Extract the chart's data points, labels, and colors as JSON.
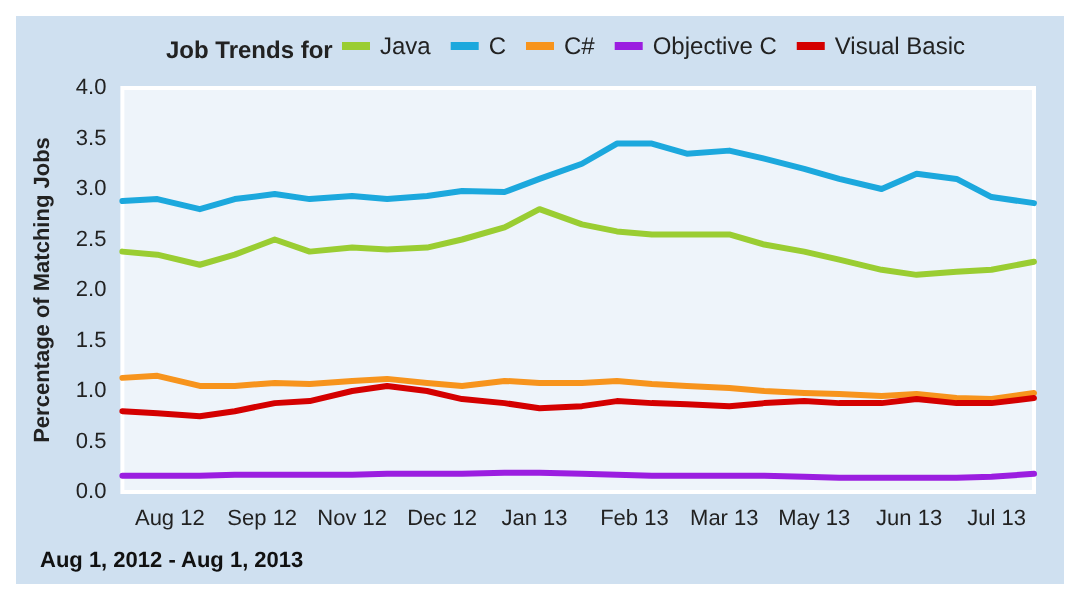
{
  "chart_data": {
    "type": "line",
    "title": "Job Trends for",
    "ylabel": "Percentage of Matching Jobs",
    "annotations": [
      "Aug 1, 2012 - Aug 1, 2013"
    ],
    "x": [
      "2012-08-01",
      "2012-08-15",
      "2012-09-01",
      "2012-09-15",
      "2012-10-01",
      "2012-10-15",
      "2012-11-01",
      "2012-11-15",
      "2012-12-01",
      "2012-12-15",
      "2013-01-01",
      "2013-01-15",
      "2013-02-01",
      "2013-02-15",
      "2013-03-01",
      "2013-03-15",
      "2013-04-01",
      "2013-04-15",
      "2013-05-01",
      "2013-05-15",
      "2013-06-01",
      "2013-06-15",
      "2013-07-01",
      "2013-07-15",
      "2013-08-01"
    ],
    "series": [
      {
        "name": "Java",
        "color": "#9acd32",
        "values": [
          2.38,
          2.35,
          2.25,
          2.35,
          2.5,
          2.38,
          2.42,
          2.4,
          2.42,
          2.5,
          2.62,
          2.8,
          2.65,
          2.58,
          2.55,
          2.55,
          2.55,
          2.45,
          2.38,
          2.3,
          2.2,
          2.15,
          2.18,
          2.2,
          2.28
        ]
      },
      {
        "name": "C",
        "color": "#1ca8dd",
        "values": [
          2.88,
          2.9,
          2.8,
          2.9,
          2.95,
          2.9,
          2.93,
          2.9,
          2.93,
          2.98,
          2.97,
          3.1,
          3.25,
          3.45,
          3.45,
          3.35,
          3.38,
          3.3,
          3.2,
          3.1,
          3.0,
          3.15,
          3.1,
          2.92,
          2.86
        ]
      },
      {
        "name": "C#",
        "color": "#f7941d",
        "values": [
          1.13,
          1.15,
          1.05,
          1.05,
          1.08,
          1.07,
          1.1,
          1.12,
          1.08,
          1.05,
          1.1,
          1.08,
          1.08,
          1.1,
          1.07,
          1.05,
          1.03,
          1.0,
          0.98,
          0.97,
          0.95,
          0.97,
          0.93,
          0.92,
          0.98
        ]
      },
      {
        "name": "Objective C",
        "color": "#9b1ee0",
        "values": [
          0.16,
          0.16,
          0.16,
          0.17,
          0.17,
          0.17,
          0.17,
          0.18,
          0.18,
          0.18,
          0.19,
          0.19,
          0.18,
          0.17,
          0.16,
          0.16,
          0.16,
          0.16,
          0.15,
          0.14,
          0.14,
          0.14,
          0.14,
          0.15,
          0.18
        ]
      },
      {
        "name": "Visual Basic",
        "color": "#d40000",
        "values": [
          0.8,
          0.78,
          0.75,
          0.8,
          0.88,
          0.9,
          1.0,
          1.05,
          1.0,
          0.92,
          0.88,
          0.83,
          0.85,
          0.9,
          0.88,
          0.87,
          0.85,
          0.88,
          0.9,
          0.88,
          0.88,
          0.92,
          0.88,
          0.88,
          0.93
        ]
      }
    ],
    "xlim": [
      "2012-08-01",
      "2013-08-01"
    ],
    "xticks": [
      {
        "value": "2012-08-20",
        "label": "Aug 12"
      },
      {
        "value": "2012-09-26",
        "label": "Sep 12"
      },
      {
        "value": "2012-11-01",
        "label": "Nov 12"
      },
      {
        "value": "2012-12-07",
        "label": "Dec 12"
      },
      {
        "value": "2013-01-13",
        "label": "Jan 13"
      },
      {
        "value": "2013-02-22",
        "label": "Feb 13"
      },
      {
        "value": "2013-03-30",
        "label": "Mar 13"
      },
      {
        "value": "2013-05-05",
        "label": "May 13"
      },
      {
        "value": "2013-06-12",
        "label": "Jun 13"
      },
      {
        "value": "2013-07-17",
        "label": "Jul 13"
      }
    ],
    "ylim": [
      0,
      4
    ],
    "yticks": [
      {
        "value": 0,
        "label": "0.0"
      },
      {
        "value": 0.5,
        "label": "0.5"
      },
      {
        "value": 1,
        "label": "1.0"
      },
      {
        "value": 1.5,
        "label": "1.5"
      },
      {
        "value": 2,
        "label": "2.0"
      },
      {
        "value": 2.5,
        "label": "2.5"
      },
      {
        "value": 3,
        "label": "3.0"
      },
      {
        "value": 3.5,
        "label": "3.5"
      },
      {
        "value": 4,
        "label": "4.0"
      }
    ],
    "grid": false,
    "legend": "top",
    "marker": "none",
    "line_style": "solid"
  }
}
